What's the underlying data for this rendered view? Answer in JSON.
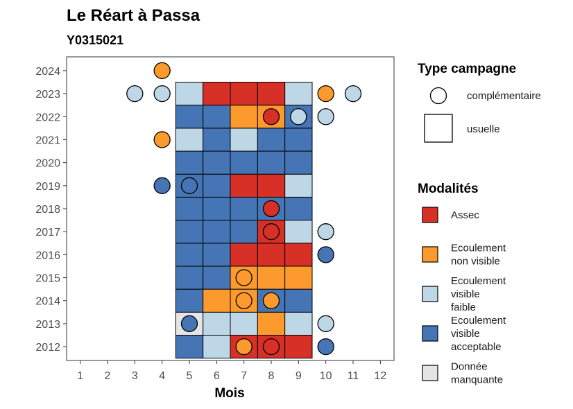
{
  "title": "Le Réart à Passa",
  "subtitle": "Y0315021",
  "chart_data": {
    "type": "heatmap",
    "xlabel": "Mois",
    "ylabel": "",
    "x_ticks": [
      1,
      2,
      3,
      4,
      5,
      6,
      7,
      8,
      9,
      10,
      11,
      12
    ],
    "y_ticks": [
      2012,
      2013,
      2014,
      2015,
      2016,
      2017,
      2018,
      2019,
      2020,
      2021,
      2022,
      2023,
      2024
    ],
    "xlim": [
      0.5,
      12.5
    ],
    "ylim": [
      2011.4,
      2024.6
    ],
    "grid": false,
    "legend_placement": "right",
    "colors": {
      "assec": "#d73027",
      "ecoulement_non_visible": "#fd9a2e",
      "ecoulement_visible_faible": "#bdd7e7",
      "ecoulement_visible_acceptable": "#4575b4",
      "donnee_manquante": "#e5e5e5"
    },
    "legend_shape": {
      "title": "Type campagne",
      "entries": [
        {
          "label": "complémentaire",
          "shape": "circle"
        },
        {
          "label": "usuelle",
          "shape": "square"
        }
      ]
    },
    "legend_fill": {
      "title": "Modalités",
      "entries": [
        {
          "key": "assec",
          "lines": [
            "Assec"
          ]
        },
        {
          "key": "ecoulement_non_visible",
          "lines": [
            "Ecoulement",
            "non visible"
          ]
        },
        {
          "key": "ecoulement_visible_faible",
          "lines": [
            "Ecoulement",
            "visible",
            "faible"
          ]
        },
        {
          "key": "ecoulement_visible_acceptable",
          "lines": [
            "Ecoulement",
            "visible",
            "acceptable"
          ]
        },
        {
          "key": "donnee_manquante",
          "lines": [
            "Donnée",
            "manquante"
          ]
        }
      ]
    },
    "usuelle": [
      {
        "year": 2012,
        "month": 5,
        "value": "ecoulement_visible_acceptable"
      },
      {
        "year": 2012,
        "month": 6,
        "value": "ecoulement_visible_faible"
      },
      {
        "year": 2012,
        "month": 7,
        "value": "assec"
      },
      {
        "year": 2012,
        "month": 8,
        "value": "assec"
      },
      {
        "year": 2012,
        "month": 9,
        "value": "assec"
      },
      {
        "year": 2013,
        "month": 5,
        "value": "donnee_manquante"
      },
      {
        "year": 2013,
        "month": 6,
        "value": "ecoulement_visible_faible"
      },
      {
        "year": 2013,
        "month": 7,
        "value": "ecoulement_visible_faible"
      },
      {
        "year": 2013,
        "month": 8,
        "value": "ecoulement_non_visible"
      },
      {
        "year": 2013,
        "month": 9,
        "value": "ecoulement_visible_faible"
      },
      {
        "year": 2014,
        "month": 5,
        "value": "ecoulement_visible_acceptable"
      },
      {
        "year": 2014,
        "month": 6,
        "value": "ecoulement_non_visible"
      },
      {
        "year": 2014,
        "month": 7,
        "value": "ecoulement_non_visible"
      },
      {
        "year": 2014,
        "month": 8,
        "value": "ecoulement_visible_acceptable"
      },
      {
        "year": 2014,
        "month": 9,
        "value": "ecoulement_visible_acceptable"
      },
      {
        "year": 2015,
        "month": 5,
        "value": "ecoulement_visible_acceptable"
      },
      {
        "year": 2015,
        "month": 6,
        "value": "ecoulement_visible_acceptable"
      },
      {
        "year": 2015,
        "month": 7,
        "value": "ecoulement_non_visible"
      },
      {
        "year": 2015,
        "month": 8,
        "value": "ecoulement_non_visible"
      },
      {
        "year": 2015,
        "month": 9,
        "value": "ecoulement_non_visible"
      },
      {
        "year": 2016,
        "month": 5,
        "value": "ecoulement_visible_acceptable"
      },
      {
        "year": 2016,
        "month": 6,
        "value": "ecoulement_visible_acceptable"
      },
      {
        "year": 2016,
        "month": 7,
        "value": "assec"
      },
      {
        "year": 2016,
        "month": 8,
        "value": "assec"
      },
      {
        "year": 2016,
        "month": 9,
        "value": "assec"
      },
      {
        "year": 2017,
        "month": 5,
        "value": "ecoulement_visible_acceptable"
      },
      {
        "year": 2017,
        "month": 6,
        "value": "ecoulement_visible_acceptable"
      },
      {
        "year": 2017,
        "month": 7,
        "value": "ecoulement_visible_acceptable"
      },
      {
        "year": 2017,
        "month": 8,
        "value": "assec"
      },
      {
        "year": 2017,
        "month": 9,
        "value": "ecoulement_visible_faible"
      },
      {
        "year": 2018,
        "month": 5,
        "value": "ecoulement_visible_acceptable"
      },
      {
        "year": 2018,
        "month": 6,
        "value": "ecoulement_visible_acceptable"
      },
      {
        "year": 2018,
        "month": 7,
        "value": "ecoulement_visible_acceptable"
      },
      {
        "year": 2018,
        "month": 8,
        "value": "ecoulement_visible_acceptable"
      },
      {
        "year": 2018,
        "month": 9,
        "value": "ecoulement_visible_acceptable"
      },
      {
        "year": 2019,
        "month": 5,
        "value": "ecoulement_visible_acceptable"
      },
      {
        "year": 2019,
        "month": 6,
        "value": "ecoulement_visible_acceptable"
      },
      {
        "year": 2019,
        "month": 7,
        "value": "assec"
      },
      {
        "year": 2019,
        "month": 8,
        "value": "assec"
      },
      {
        "year": 2019,
        "month": 9,
        "value": "ecoulement_visible_faible"
      },
      {
        "year": 2020,
        "month": 5,
        "value": "ecoulement_visible_acceptable"
      },
      {
        "year": 2020,
        "month": 6,
        "value": "ecoulement_visible_acceptable"
      },
      {
        "year": 2020,
        "month": 7,
        "value": "ecoulement_visible_acceptable"
      },
      {
        "year": 2020,
        "month": 8,
        "value": "ecoulement_visible_acceptable"
      },
      {
        "year": 2020,
        "month": 9,
        "value": "ecoulement_visible_acceptable"
      },
      {
        "year": 2021,
        "month": 5,
        "value": "ecoulement_visible_faible"
      },
      {
        "year": 2021,
        "month": 6,
        "value": "ecoulement_visible_acceptable"
      },
      {
        "year": 2021,
        "month": 7,
        "value": "ecoulement_visible_faible"
      },
      {
        "year": 2021,
        "month": 8,
        "value": "ecoulement_visible_acceptable"
      },
      {
        "year": 2021,
        "month": 9,
        "value": "ecoulement_visible_acceptable"
      },
      {
        "year": 2022,
        "month": 5,
        "value": "ecoulement_visible_acceptable"
      },
      {
        "year": 2022,
        "month": 6,
        "value": "ecoulement_visible_acceptable"
      },
      {
        "year": 2022,
        "month": 7,
        "value": "ecoulement_non_visible"
      },
      {
        "year": 2022,
        "month": 8,
        "value": "ecoulement_non_visible"
      },
      {
        "year": 2022,
        "month": 9,
        "value": "ecoulement_visible_acceptable"
      },
      {
        "year": 2023,
        "month": 5,
        "value": "ecoulement_visible_faible"
      },
      {
        "year": 2023,
        "month": 6,
        "value": "assec"
      },
      {
        "year": 2023,
        "month": 7,
        "value": "assec"
      },
      {
        "year": 2023,
        "month": 8,
        "value": "assec"
      },
      {
        "year": 2023,
        "month": 9,
        "value": "ecoulement_visible_faible"
      }
    ],
    "complementaire": [
      {
        "year": 2012,
        "month": 7,
        "value": "ecoulement_non_visible"
      },
      {
        "year": 2012,
        "month": 8,
        "value": "assec"
      },
      {
        "year": 2012,
        "month": 10,
        "value": "ecoulement_visible_acceptable"
      },
      {
        "year": 2013,
        "month": 5,
        "value": "ecoulement_visible_acceptable"
      },
      {
        "year": 2013,
        "month": 10,
        "value": "ecoulement_visible_faible"
      },
      {
        "year": 2014,
        "month": 7,
        "value": "ecoulement_non_visible"
      },
      {
        "year": 2014,
        "month": 8,
        "value": "ecoulement_non_visible"
      },
      {
        "year": 2015,
        "month": 7,
        "value": "ecoulement_non_visible"
      },
      {
        "year": 2016,
        "month": 10,
        "value": "ecoulement_visible_acceptable"
      },
      {
        "year": 2017,
        "month": 8,
        "value": "assec"
      },
      {
        "year": 2017,
        "month": 10,
        "value": "ecoulement_visible_faible"
      },
      {
        "year": 2018,
        "month": 8,
        "value": "assec"
      },
      {
        "year": 2019,
        "month": 4,
        "value": "ecoulement_visible_acceptable"
      },
      {
        "year": 2019,
        "month": 5,
        "value": "ecoulement_visible_acceptable"
      },
      {
        "year": 2021,
        "month": 4,
        "value": "ecoulement_non_visible"
      },
      {
        "year": 2022,
        "month": 8,
        "value": "assec"
      },
      {
        "year": 2022,
        "month": 9,
        "value": "ecoulement_visible_faible"
      },
      {
        "year": 2022,
        "month": 10,
        "value": "ecoulement_visible_faible"
      },
      {
        "year": 2023,
        "month": 3,
        "value": "ecoulement_visible_faible"
      },
      {
        "year": 2023,
        "month": 4,
        "value": "ecoulement_visible_faible"
      },
      {
        "year": 2023,
        "month": 10,
        "value": "ecoulement_non_visible"
      },
      {
        "year": 2023,
        "month": 11,
        "value": "ecoulement_visible_faible"
      },
      {
        "year": 2024,
        "month": 4,
        "value": "ecoulement_non_visible"
      }
    ]
  }
}
